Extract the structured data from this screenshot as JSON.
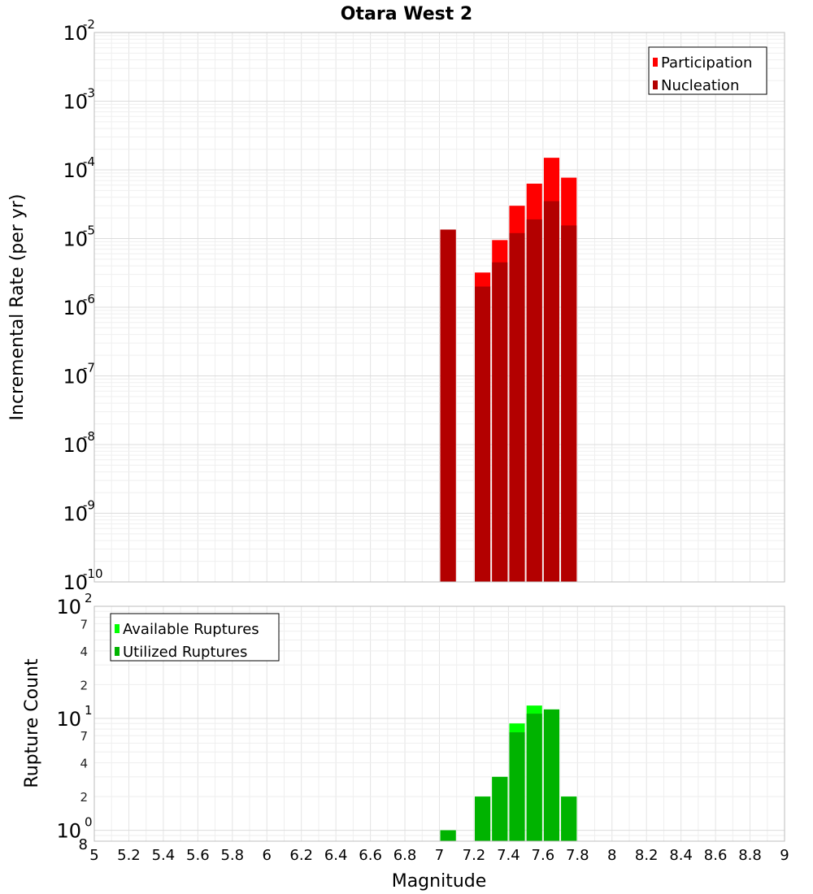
{
  "chart_data": [
    {
      "type": "bar",
      "title": "Otara West 2",
      "xlabel": "Magnitude",
      "ylabel": "Incremental Rate (per yr)",
      "yscale": "log",
      "xlim": [
        5,
        9
      ],
      "ylim": [
        1e-10,
        0.01
      ],
      "grid": true,
      "legend_position": "top-right",
      "y_ticks": [
        {
          "base": "10",
          "exp": "-2",
          "value": 0.01
        },
        {
          "base": "10",
          "exp": "-3",
          "value": 0.001
        },
        {
          "base": "10",
          "exp": "-4",
          "value": 0.0001
        },
        {
          "base": "10",
          "exp": "-5",
          "value": 1e-05
        },
        {
          "base": "10",
          "exp": "-6",
          "value": 1e-06
        },
        {
          "base": "10",
          "exp": "-7",
          "value": 1e-07
        },
        {
          "base": "10",
          "exp": "-8",
          "value": 1e-08
        },
        {
          "base": "10",
          "exp": "-9",
          "value": 1e-09
        },
        {
          "base": "10",
          "exp": "-10",
          "value": 1e-10
        }
      ],
      "series": [
        {
          "name": "Participation",
          "color": "#ff0000",
          "x": [
            7.05,
            7.25,
            7.35,
            7.45,
            7.55,
            7.65,
            7.75
          ],
          "values": [
            1.35e-05,
            3.2e-06,
            9.5e-06,
            3e-05,
            6.3e-05,
            0.00015,
            7.7e-05
          ]
        },
        {
          "name": "Nucleation",
          "color": "#b30000",
          "x": [
            7.05,
            7.25,
            7.35,
            7.45,
            7.55,
            7.65,
            7.75
          ],
          "values": [
            1.35e-05,
            2e-06,
            4.5e-06,
            1.2e-05,
            1.9e-05,
            3.5e-05,
            1.55e-05
          ]
        }
      ]
    },
    {
      "type": "bar",
      "xlabel": "Magnitude",
      "ylabel": "Rupture Count",
      "yscale": "log",
      "xlim": [
        5,
        9
      ],
      "ylim": [
        0.8,
        100
      ],
      "grid": true,
      "legend_position": "top-left",
      "y_major_ticks": [
        {
          "base": "10",
          "exp": "2",
          "value": 100
        },
        {
          "base": "10",
          "exp": "1",
          "value": 10
        },
        {
          "base": "10",
          "exp": "0",
          "value": 1
        }
      ],
      "y_minor_ticks": [
        {
          "label": "7",
          "value": 70
        },
        {
          "label": "4",
          "value": 40
        },
        {
          "label": "2",
          "value": 20
        },
        {
          "label": "7",
          "value": 7
        },
        {
          "label": "4",
          "value": 4
        },
        {
          "label": "2",
          "value": 2
        },
        {
          "label": "8",
          "value": 0.8
        }
      ],
      "series": [
        {
          "name": "Available Ruptures",
          "color": "#00ff00",
          "x": [
            7.05,
            7.25,
            7.35,
            7.45,
            7.55,
            7.65,
            7.75
          ],
          "values": [
            1,
            2,
            3,
            9,
            13,
            12,
            2
          ]
        },
        {
          "name": "Utilized Ruptures",
          "color": "#00b300",
          "x": [
            7.05,
            7.25,
            7.35,
            7.45,
            7.55,
            7.65,
            7.75
          ],
          "values": [
            1,
            2,
            3,
            7.5,
            11,
            12,
            2
          ]
        }
      ]
    }
  ],
  "x_ticks": [
    "5",
    "5.2",
    "5.4",
    "5.6",
    "5.8",
    "6",
    "6.2",
    "6.4",
    "6.6",
    "6.8",
    "7",
    "7.2",
    "7.4",
    "7.6",
    "7.8",
    "8",
    "8.2",
    "8.4",
    "8.6",
    "8.8",
    "9"
  ]
}
